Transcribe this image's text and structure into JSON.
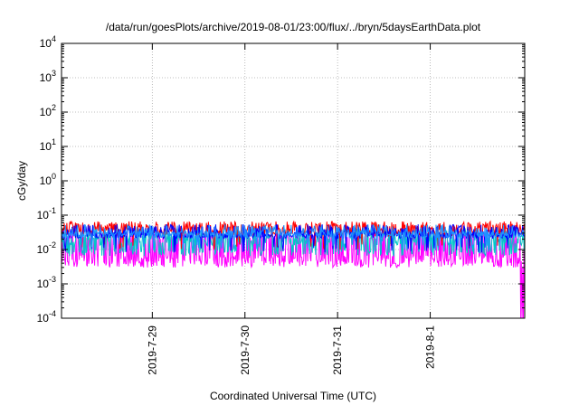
{
  "chart_data": {
    "type": "line",
    "title": "/data/run/goesPlots/archive/2019-08-01/23:00/flux/../bryn/5daysEarthData.plot",
    "xlabel": "Coordinated Universal Time (UTC)",
    "ylabel": "cGy/day",
    "yscale": "log",
    "ylim": [
      0.0001,
      10000
    ],
    "y_ticks": [
      {
        "base": "10",
        "exp": "-4"
      },
      {
        "base": "10",
        "exp": "-3"
      },
      {
        "base": "10",
        "exp": "-2"
      },
      {
        "base": "10",
        "exp": "-1"
      },
      {
        "base": "10",
        "exp": "0"
      },
      {
        "base": "10",
        "exp": "1"
      },
      {
        "base": "10",
        "exp": "2"
      },
      {
        "base": "10",
        "exp": "3"
      },
      {
        "base": "10",
        "exp": "4"
      }
    ],
    "x_range_days": [
      0,
      5
    ],
    "x_ticks": [
      {
        "label": "2019-7-29",
        "day": 0.98
      },
      {
        "label": "2019-7-30",
        "day": 1.98
      },
      {
        "label": "2019-7-31",
        "day": 2.98
      },
      {
        "label": "2019-8-1",
        "day": 3.98
      }
    ],
    "grid": true,
    "series": [
      {
        "color": "#ff0000",
        "level": 0.032,
        "spread": 0.12,
        "spike": 0.35,
        "spike_to": 0.055,
        "dip": 0.04,
        "dip_to": 0.012
      },
      {
        "color": "#0000ff",
        "level": 0.026,
        "spread": 0.1,
        "spike": 0.25,
        "spike_to": 0.045,
        "dip": 0.05,
        "dip_to": 0.01
      },
      {
        "color": "#00c8c8",
        "level": 0.02,
        "spread": 0.18,
        "spike": 0.2,
        "spike_to": 0.035,
        "dip": 0.25,
        "dip_to": 0.008
      },
      {
        "color": "#1e90ff",
        "level": 0.028,
        "spread": 0.1,
        "spike": 0.2,
        "spike_to": 0.045,
        "dip": 0.06,
        "dip_to": 0.012
      },
      {
        "color": "#ff00ff",
        "level": 0.0045,
        "spread": 0.18,
        "spike": 0.45,
        "spike_to": 0.025,
        "dip": 0.0,
        "dip_to": 0.004
      }
    ]
  }
}
